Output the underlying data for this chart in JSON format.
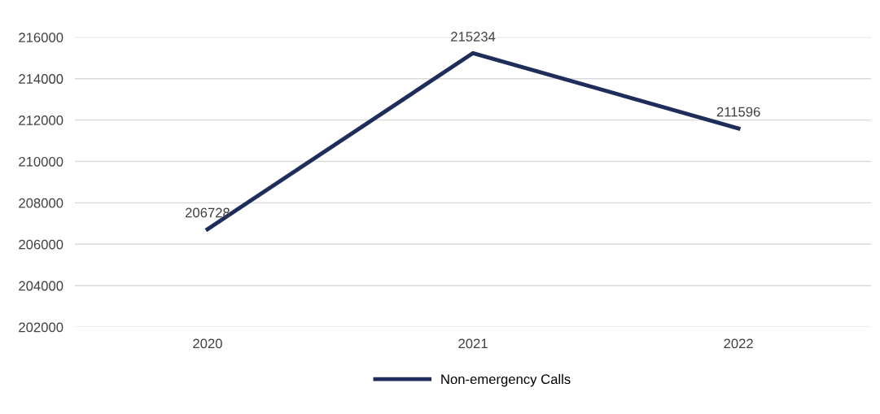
{
  "chart_data": {
    "type": "line",
    "categories": [
      "2020",
      "2021",
      "2022"
    ],
    "series": [
      {
        "name": "Non-emergency Calls",
        "color": "#1f2d5a",
        "values": [
          206728,
          215234,
          211596
        ]
      }
    ],
    "ylim": [
      202000,
      216000
    ],
    "yticks": [
      202000,
      204000,
      206000,
      208000,
      210000,
      212000,
      214000,
      216000
    ],
    "grid": "y",
    "legend": "bottom",
    "data_labels": true,
    "marker": "none",
    "line_style": "solid"
  }
}
